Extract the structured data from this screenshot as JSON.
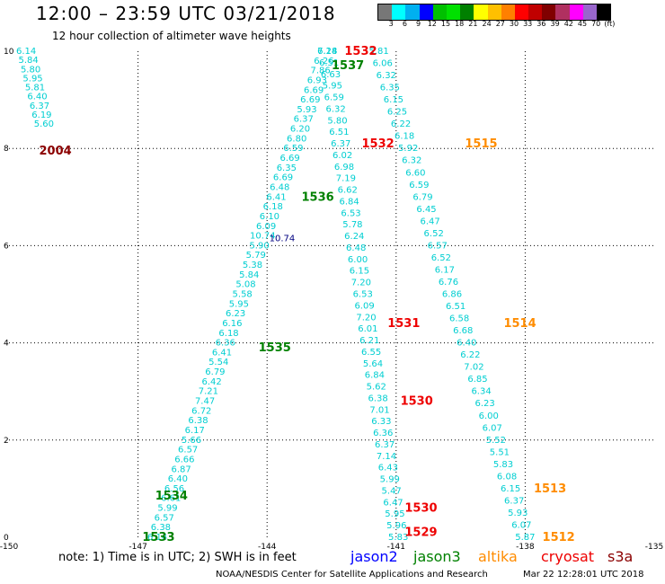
{
  "header": {
    "title": "12:00 – 23:59 UTC 03/21/2018",
    "subtitle": "12 hour collection of altimeter wave heights"
  },
  "scale": {
    "colors": [
      "#777777",
      "#00ffff",
      "#00b0f0",
      "#0000ff",
      "#00c000",
      "#00e000",
      "#008000",
      "#ffff00",
      "#ffc000",
      "#ff8000",
      "#ff0000",
      "#c00000",
      "#800000",
      "#b03060",
      "#ff00ff",
      "#9966cc",
      "#000000"
    ],
    "labels": [
      "3",
      "6",
      "9",
      "12",
      "15",
      "18",
      "21",
      "24",
      "27",
      "30",
      "33",
      "36",
      "39",
      "42",
      "45",
      "70",
      "(ft)"
    ]
  },
  "axes": {
    "x_ticks": [
      "-150",
      "-147",
      "-144",
      "-141",
      "-138",
      "-135"
    ],
    "y_ticks": [
      "0",
      "2",
      "4",
      "6",
      "8",
      "10"
    ]
  },
  "map": {
    "lon_range": [
      -150,
      -135
    ],
    "lat_range": [
      0,
      10
    ]
  },
  "passes": [
    {
      "id": "1533",
      "color": "#008000",
      "lon": -146.9,
      "lat": 0.0
    },
    {
      "id": "1534",
      "color": "#008000",
      "lon": -146.6,
      "lat": 0.85
    },
    {
      "id": "1535",
      "color": "#008000",
      "lon": -144.2,
      "lat": 3.9
    },
    {
      "id": "1536",
      "color": "#008000",
      "lon": -143.2,
      "lat": 7.0
    },
    {
      "id": "1537",
      "color": "#008000",
      "lon": -142.5,
      "lat": 9.7
    },
    {
      "id": "1532",
      "color": "#ee0000",
      "lon": -142.2,
      "lat": 10.0
    },
    {
      "id": "1532",
      "color": "#ee0000",
      "lon": -141.8,
      "lat": 8.1
    },
    {
      "id": "1531",
      "color": "#ee0000",
      "lon": -141.2,
      "lat": 4.4
    },
    {
      "id": "1530",
      "color": "#ee0000",
      "lon": -140.9,
      "lat": 2.8
    },
    {
      "id": "1530",
      "color": "#ee0000",
      "lon": -140.8,
      "lat": 0.6
    },
    {
      "id": "1529",
      "color": "#ee0000",
      "lon": -140.8,
      "lat": 0.1
    },
    {
      "id": "1515",
      "color": "#ff8c00",
      "lon": -139.4,
      "lat": 8.1
    },
    {
      "id": "1514",
      "color": "#ff8c00",
      "lon": -138.5,
      "lat": 4.4
    },
    {
      "id": "1513",
      "color": "#ff8c00",
      "lon": -137.8,
      "lat": 1.0
    },
    {
      "id": "1512",
      "color": "#ff8c00",
      "lon": -137.6,
      "lat": 0.0
    },
    {
      "id": "2004",
      "color": "#8b0000",
      "lon": -149.3,
      "lat": 7.95
    }
  ],
  "tracks": [
    {
      "color": "#00ced1",
      "start": [
        -146.85,
        0.0
      ],
      "end": [
        -149.6,
        10.0
      ],
      "values": [
        "5.60",
        "6.19",
        "6.37",
        "6.40",
        "5.81",
        "5.95",
        "5.80",
        "5.84",
        "6.14"
      ],
      "partial": true,
      "from": 0.85
    },
    {
      "color": "#00ced1",
      "start": [
        -146.55,
        0.0
      ],
      "end": [
        -142.6,
        10.0
      ],
      "values": [
        "6.14",
        "6.38",
        "6.57",
        "5.99",
        "6.61",
        "6.56",
        "6.40",
        "6.87",
        "6.66",
        "6.57",
        "5.66",
        "6.17",
        "6.38",
        "6.72",
        "7.47",
        "7.21",
        "6.42",
        "6.79",
        "5.54",
        "6.41",
        "6.36",
        "6.18",
        "6.16",
        "6.23",
        "5.95",
        "5.58",
        "5.08",
        "5.84",
        "5.38",
        "5.79",
        "5.90",
        "10.74",
        "6.09",
        "6.10",
        "6.18",
        "6.41",
        "6.48",
        "6.69",
        "6.35",
        "6.69",
        "6.59",
        "6.80",
        "6.20",
        "6.37",
        "5.93",
        "6.69",
        "6.69",
        "6.93",
        "7.86",
        "6.26",
        "7.14"
      ]
    },
    {
      "color": "#00ced1",
      "start": [
        -140.95,
        0.0
      ],
      "end": [
        -142.6,
        10.0
      ],
      "values": [
        "5.83",
        "5.96",
        "5.95",
        "6.47",
        "5.47",
        "5.99",
        "6.43",
        "7.14",
        "6.37",
        "6.36",
        "6.33",
        "7.01",
        "6.38",
        "5.62",
        "6.84",
        "5.64",
        "6.55",
        "6.21",
        "6.01",
        "7.20",
        "6.09",
        "6.53",
        "7.20",
        "6.15",
        "6.00",
        "6.48",
        "6.24",
        "5.78",
        "6.53",
        "6.84",
        "6.62",
        "7.19",
        "6.98",
        "6.02",
        "6.37",
        "6.51",
        "5.80",
        "6.32",
        "6.59",
        "5.95",
        "6.63",
        "6.51",
        "6.28"
      ]
    },
    {
      "color": "#00ced1",
      "start": [
        -138.0,
        0.0
      ],
      "end": [
        -141.4,
        10.0
      ],
      "values": [
        "5.87",
        "6.07",
        "5.93",
        "6.37",
        "6.15",
        "6.08",
        "5.83",
        "5.51",
        "5.52",
        "6.07",
        "6.00",
        "6.23",
        "6.34",
        "6.85",
        "7.02",
        "6.22",
        "6.40",
        "6.68",
        "6.58",
        "6.51",
        "6.86",
        "6.76",
        "6.17",
        "6.52",
        "6.57",
        "6.52",
        "6.47",
        "6.45",
        "6.79",
        "6.59",
        "6.60",
        "6.32",
        "5.92",
        "6.18",
        "6.22",
        "6.25",
        "6.15",
        "6.35",
        "6.32",
        "6.06",
        "5.81"
      ]
    }
  ],
  "special_marks": [
    {
      "lon": -143.65,
      "lat": 6.15,
      "value": "10.74",
      "color": "#000080"
    }
  ],
  "footer": {
    "note": "note:  1) Time is in UTC;  2) SWH is in feet",
    "satellites": [
      {
        "name": "jason2",
        "color": "#0000ff"
      },
      {
        "name": "jason3",
        "color": "#008000"
      },
      {
        "name": "altika",
        "color": "#ff8c00"
      },
      {
        "name": "cryosat",
        "color": "#ee0000"
      },
      {
        "name": "s3a",
        "color": "#8b0000"
      }
    ],
    "credit": "NOAA/NESDIS Center for Satellite Applications and Research",
    "date": "Mar 22 12:28:01 UTC 2018"
  }
}
